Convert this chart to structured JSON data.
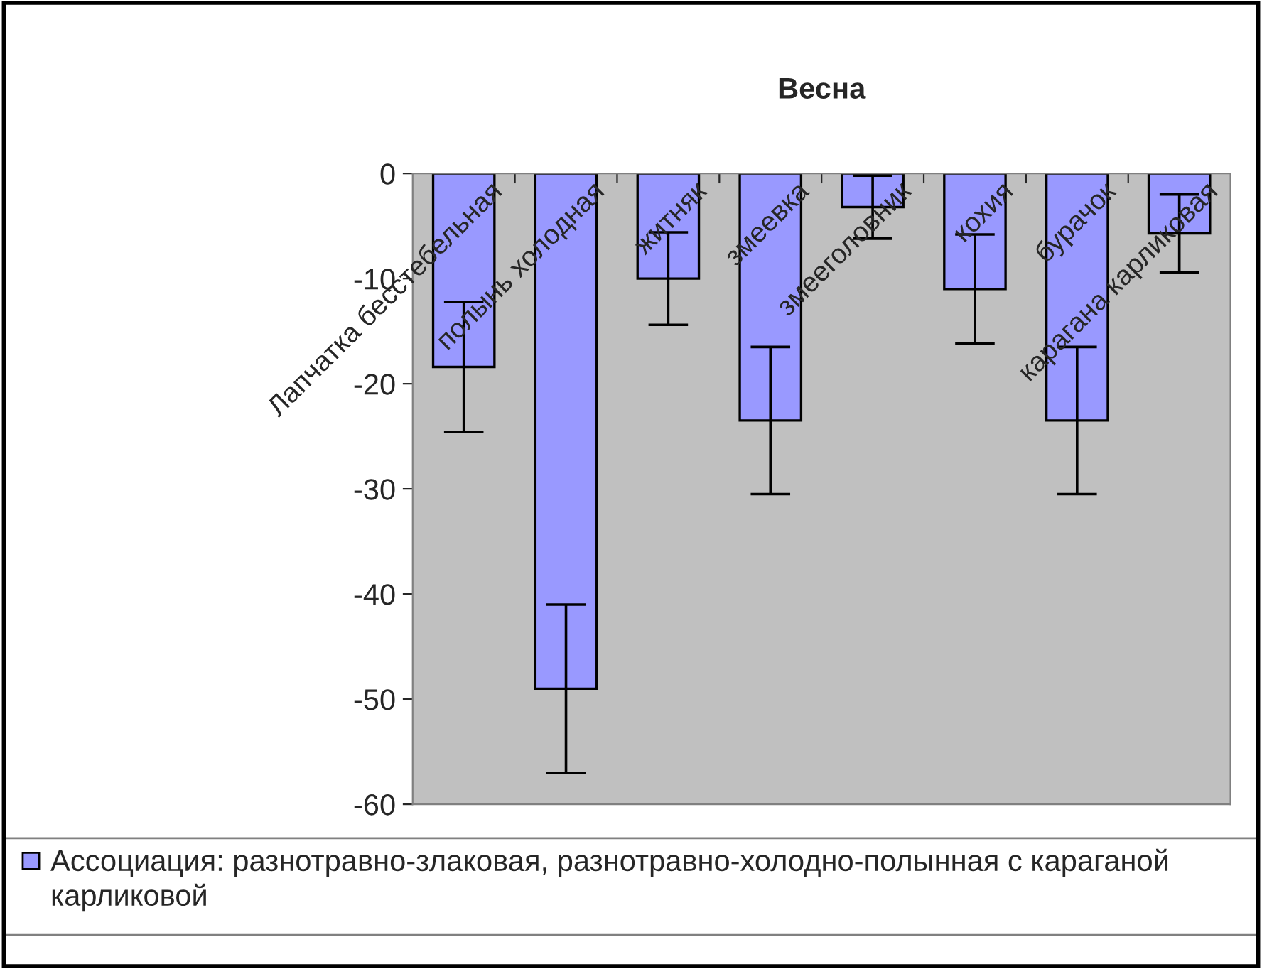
{
  "chart_data": {
    "type": "bar",
    "title": "Весна",
    "categories": [
      "Лапчатка бесстебельная",
      "полынь холодная",
      "житняк",
      "змеевка",
      "змееголовник",
      "кохия",
      "бурачок",
      "карагана карликовая"
    ],
    "series": [
      {
        "name": "Ассоциация: разнотравно-злаковая, разнотравно-холодно-полынная с караганой карликовой",
        "color": "#9999ff",
        "values": [
          -18.4,
          -49,
          -10,
          -23.5,
          -3.2,
          -11,
          -23.5,
          -5.7
        ],
        "errors": [
          6.2,
          8,
          4.4,
          7,
          3,
          5.2,
          7,
          3.7
        ]
      }
    ],
    "ylim": [
      -60,
      0
    ],
    "yticks": [
      -60,
      -50,
      -40,
      -30,
      -20,
      -10,
      0
    ],
    "grid": false,
    "legend": "bottom"
  }
}
